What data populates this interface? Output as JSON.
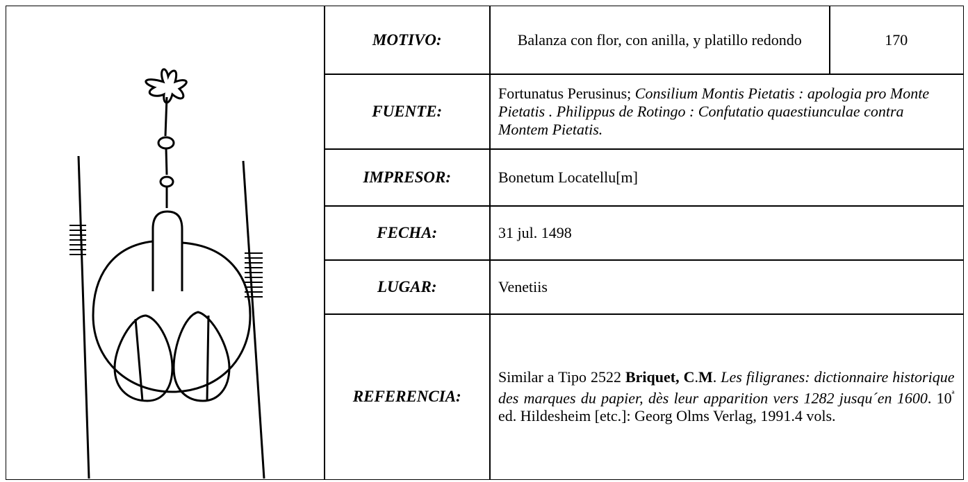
{
  "table": {
    "rows": [
      {
        "label": "MOTIVO:",
        "value": [
          {
            "text": "Balanza con flor, con anilla, y platillo redondo",
            "style": "normal"
          }
        ],
        "align": "center",
        "number": "170"
      },
      {
        "label": "FUENTE:",
        "value": [
          {
            "text": "Fortunatus Perusinus; ",
            "style": "normal"
          },
          {
            "text": "Consilium Montis Pietatis : apologia pro Monte Pietatis . Philippus de Rotingo : Confutatio quaestiunculae contra Montem Pietatis.",
            "style": "italic"
          }
        ],
        "align": "left"
      },
      {
        "label": "IMPRESOR:",
        "value": [
          {
            "text": "Bonetum Locatellu[m]",
            "style": "normal"
          }
        ],
        "align": "left"
      },
      {
        "label": "FECHA:",
        "value": [
          {
            "text": "31 jul. 1498",
            "style": "normal"
          }
        ],
        "align": "left"
      },
      {
        "label": "LUGAR:",
        "value": [
          {
            "text": "Venetiis",
            "style": "normal"
          }
        ],
        "align": "left"
      },
      {
        "label": "REFERENCIA:",
        "value": [
          {
            "text": "Similar a Tipo 2522 ",
            "style": "normal"
          },
          {
            "text": "Briquet, C",
            "style": "bold"
          },
          {
            "text": ".",
            "style": "normal"
          },
          {
            "text": "M",
            "style": "bold"
          },
          {
            "text": ". ",
            "style": "normal"
          },
          {
            "text": "Les filigranes: dictionnaire historique des marques du papier, dès leur apparition vers 1282 jusqu´en 1600",
            "style": "italic"
          },
          {
            "text": ". 10",
            "style": "normal"
          },
          {
            "text": "ª",
            "style": "sup"
          },
          {
            "text": " ed. Hildesheim [etc.]: Georg Olms Verlag, 1991.4 vols.",
            "style": "normal"
          }
        ],
        "align": "justify"
      }
    ]
  }
}
